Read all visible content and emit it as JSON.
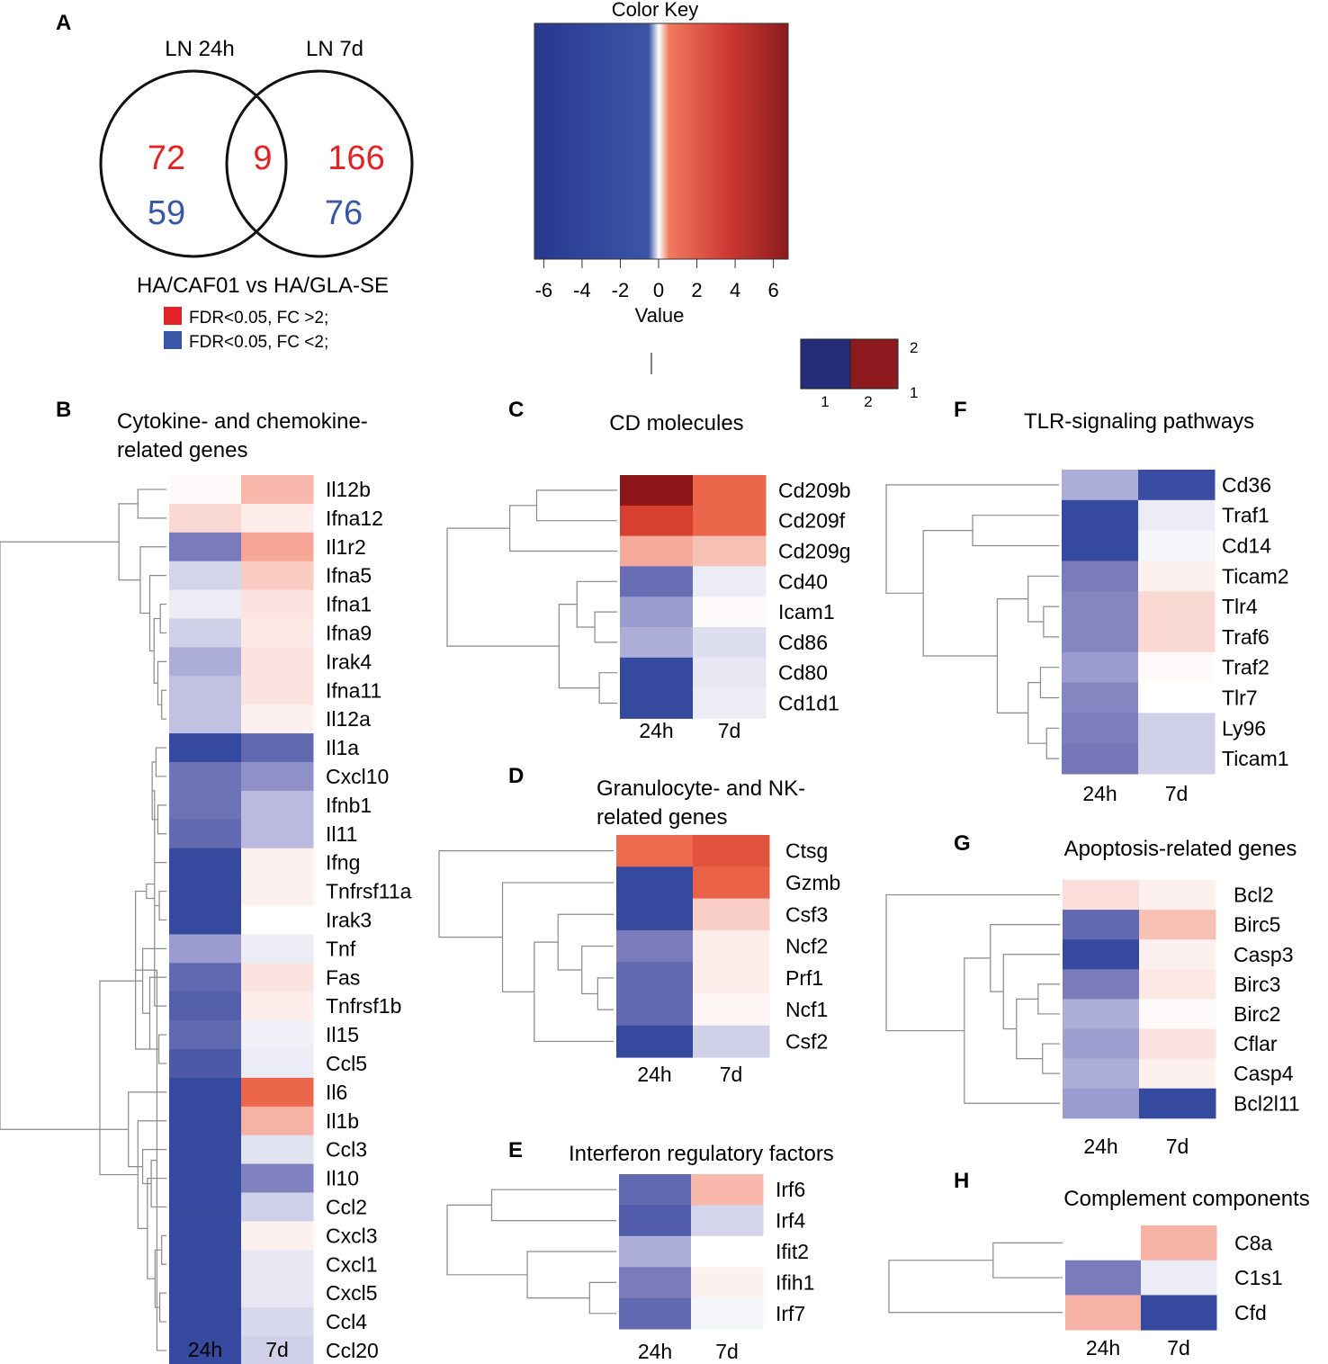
{
  "colors": {
    "neg_strong": "#35499f",
    "neutral": "#ffffff",
    "pos_strong": "#8e1518",
    "red_count": "#e32227",
    "blue_count": "#3a56a7",
    "ink": "#1a1a1a"
  },
  "panel_letters": [
    "A",
    "B",
    "C",
    "D",
    "E",
    "F",
    "G",
    "H"
  ],
  "venn": {
    "left_label": "LN 24h",
    "right_label": "LN 7d",
    "counts": {
      "left_up": "72",
      "left_down": "59",
      "overlap_up": "9",
      "right_up": "166",
      "right_down": "76"
    },
    "comparison": "HA/CAF01 vs HA/GLA-SE",
    "legend": [
      {
        "label": "FDR<0.05, FC >2;",
        "color": "#e32227"
      },
      {
        "label": "FDR<0.05, FC <2;",
        "color": "#3a56a7"
      }
    ]
  },
  "color_key": {
    "title": "Color Key",
    "xlabel": "Value",
    "ticks": [
      "-6",
      "-4",
      "-2",
      "0",
      "2",
      "4",
      "6"
    ],
    "tick_values": [
      -6,
      -4,
      -2,
      0,
      2,
      4,
      6
    ],
    "range": [
      -6.3,
      6.3
    ]
  },
  "mini_key": {
    "labels": [
      "1",
      "2",
      "2",
      "1"
    ]
  },
  "chart_data": [
    {
      "panel": "B",
      "type": "heatmap",
      "title": "Cytokine- and chemokine-\nrelated genes",
      "columns": [
        "24h",
        "7d"
      ],
      "rows": [
        {
          "gene": "Il12b",
          "values": [
            0.1,
            1.5
          ]
        },
        {
          "gene": "Ifna12",
          "values": [
            0.8,
            0.4
          ]
        },
        {
          "gene": "Il1r2",
          "values": [
            -3.3,
            1.9
          ]
        },
        {
          "gene": "Ifna5",
          "values": [
            -0.9,
            1.1
          ]
        },
        {
          "gene": "Ifna1",
          "values": [
            -0.4,
            0.6
          ]
        },
        {
          "gene": "Ifna9",
          "values": [
            -1.0,
            0.5
          ]
        },
        {
          "gene": "Irak4",
          "values": [
            -1.9,
            0.6
          ]
        },
        {
          "gene": "Ifna11",
          "values": [
            -1.4,
            0.6
          ]
        },
        {
          "gene": "Il12a",
          "values": [
            -1.4,
            0.3
          ]
        },
        {
          "gene": "Il1a",
          "values": [
            -5.8,
            -4.0
          ]
        },
        {
          "gene": "Cxcl10",
          "values": [
            -3.6,
            -2.7
          ]
        },
        {
          "gene": "Ifnb1",
          "values": [
            -3.6,
            -1.6
          ]
        },
        {
          "gene": "Il11",
          "values": [
            -4.0,
            -1.6
          ]
        },
        {
          "gene": "Ifng",
          "values": [
            -5.8,
            0.3
          ]
        },
        {
          "gene": "Tnfrsf11a",
          "values": [
            -5.8,
            0.3
          ]
        },
        {
          "gene": "Irak3",
          "values": [
            -5.8,
            0.0
          ]
        },
        {
          "gene": "Tnf",
          "values": [
            -2.4,
            -0.4
          ]
        },
        {
          "gene": "Fas",
          "values": [
            -4.0,
            0.6
          ]
        },
        {
          "gene": "Tnfrsf1b",
          "values": [
            -4.4,
            0.4
          ]
        },
        {
          "gene": "Il15",
          "values": [
            -4.0,
            -0.3
          ]
        },
        {
          "gene": "Ccl5",
          "values": [
            -4.7,
            -0.4
          ]
        },
        {
          "gene": "Il6",
          "values": [
            -5.8,
            3.5
          ]
        },
        {
          "gene": "Il1b",
          "values": [
            -5.8,
            1.6
          ]
        },
        {
          "gene": "Ccl3",
          "values": [
            -5.8,
            -0.6
          ]
        },
        {
          "gene": "Il10",
          "values": [
            -5.8,
            -3.1
          ]
        },
        {
          "gene": "Ccl2",
          "values": [
            -5.8,
            -1.0
          ]
        },
        {
          "gene": "Cxcl3",
          "values": [
            -5.8,
            0.3
          ]
        },
        {
          "gene": "Cxcl1",
          "values": [
            -5.8,
            -0.5
          ]
        },
        {
          "gene": "Cxcl5",
          "values": [
            -5.8,
            -0.5
          ]
        },
        {
          "gene": "Ccl4",
          "values": [
            -5.8,
            -0.8
          ]
        },
        {
          "gene": "Ccl20",
          "values": [
            -5.8,
            -1.0
          ]
        }
      ]
    },
    {
      "panel": "C",
      "type": "heatmap",
      "title": "CD molecules",
      "columns": [
        "24h",
        "7d"
      ],
      "rows": [
        {
          "gene": "Cd209b",
          "values": [
            6.0,
            3.5
          ]
        },
        {
          "gene": "Cd209f",
          "values": [
            4.5,
            3.5
          ]
        },
        {
          "gene": "Cd209g",
          "values": [
            1.8,
            1.3
          ]
        },
        {
          "gene": "Cd40",
          "values": [
            -3.8,
            -0.4
          ]
        },
        {
          "gene": "Icam1",
          "values": [
            -2.4,
            0.1
          ]
        },
        {
          "gene": "Cd86",
          "values": [
            -1.9,
            -0.7
          ]
        },
        {
          "gene": "Cd80",
          "values": [
            -5.8,
            -0.5
          ]
        },
        {
          "gene": "Cd1d1",
          "values": [
            -5.8,
            -0.4
          ]
        }
      ]
    },
    {
      "panel": "D",
      "type": "heatmap",
      "title": "Granulocyte- and NK-\nrelated genes",
      "columns": [
        "24h",
        "7d"
      ],
      "rows": [
        {
          "gene": "Ctsg",
          "values": [
            3.4,
            4.0
          ]
        },
        {
          "gene": "Gzmb",
          "values": [
            -5.8,
            3.6
          ]
        },
        {
          "gene": "Csf3",
          "values": [
            -5.8,
            1.0
          ]
        },
        {
          "gene": "Ncf2",
          "values": [
            -3.3,
            0.4
          ]
        },
        {
          "gene": "Prf1",
          "values": [
            -4.0,
            0.4
          ]
        },
        {
          "gene": "Ncf1",
          "values": [
            -4.0,
            0.2
          ]
        },
        {
          "gene": "Csf2",
          "values": [
            -5.8,
            -1.0
          ]
        }
      ]
    },
    {
      "panel": "E",
      "type": "heatmap",
      "title": "Interferon regulatory factors",
      "columns": [
        "24h",
        "7d"
      ],
      "rows": [
        {
          "gene": "Irf6",
          "values": [
            -4.0,
            1.5
          ]
        },
        {
          "gene": "Irf4",
          "values": [
            -4.5,
            -0.9
          ]
        },
        {
          "gene": "Ifit2",
          "values": [
            -1.9,
            0.0
          ]
        },
        {
          "gene": "Ifih1",
          "values": [
            -3.3,
            0.3
          ]
        },
        {
          "gene": "Irf7",
          "values": [
            -4.0,
            -0.2
          ]
        }
      ]
    },
    {
      "panel": "F",
      "type": "heatmap",
      "title": "TLR-signaling pathways",
      "columns": [
        "24h",
        "7d"
      ],
      "rows": [
        {
          "gene": "Cd36",
          "values": [
            -1.9,
            -5.6
          ]
        },
        {
          "gene": "Traf1",
          "values": [
            -5.8,
            -0.4
          ]
        },
        {
          "gene": "Cd14",
          "values": [
            -5.8,
            -0.2
          ]
        },
        {
          "gene": "Ticam2",
          "values": [
            -3.3,
            0.3
          ]
        },
        {
          "gene": "Tlr4",
          "values": [
            -3.0,
            0.8
          ]
        },
        {
          "gene": "Traf6",
          "values": [
            -3.0,
            0.8
          ]
        },
        {
          "gene": "Traf2",
          "values": [
            -2.4,
            0.1
          ]
        },
        {
          "gene": "Tlr7",
          "values": [
            -3.0,
            0.0
          ]
        },
        {
          "gene": "Ly96",
          "values": [
            -3.2,
            -1.0
          ]
        },
        {
          "gene": "Ticam1",
          "values": [
            -3.4,
            -1.0
          ]
        }
      ]
    },
    {
      "panel": "G",
      "type": "heatmap",
      "title": "Apoptosis-related genes",
      "columns": [
        "24h",
        "7d"
      ],
      "rows": [
        {
          "gene": "Bcl2",
          "values": [
            0.7,
            0.3
          ]
        },
        {
          "gene": "Birc5",
          "values": [
            -4.0,
            1.3
          ]
        },
        {
          "gene": "Casp3",
          "values": [
            -5.8,
            0.3
          ]
        },
        {
          "gene": "Birc3",
          "values": [
            -3.3,
            0.5
          ]
        },
        {
          "gene": "Birc2",
          "values": [
            -1.9,
            0.1
          ]
        },
        {
          "gene": "Cflar",
          "values": [
            -2.3,
            0.6
          ]
        },
        {
          "gene": "Casp4",
          "values": [
            -1.9,
            0.3
          ]
        },
        {
          "gene": "Bcl2l11",
          "values": [
            -2.4,
            -5.8
          ]
        }
      ]
    },
    {
      "panel": "H",
      "type": "heatmap",
      "title": "Complement components",
      "columns": [
        "24h",
        "7d"
      ],
      "rows": [
        {
          "gene": "C8a",
          "values": [
            0.0,
            1.6
          ]
        },
        {
          "gene": "C1s1",
          "values": [
            -3.3,
            -0.4
          ]
        },
        {
          "gene": "Cfd",
          "values": [
            1.6,
            -5.8
          ]
        }
      ]
    }
  ]
}
